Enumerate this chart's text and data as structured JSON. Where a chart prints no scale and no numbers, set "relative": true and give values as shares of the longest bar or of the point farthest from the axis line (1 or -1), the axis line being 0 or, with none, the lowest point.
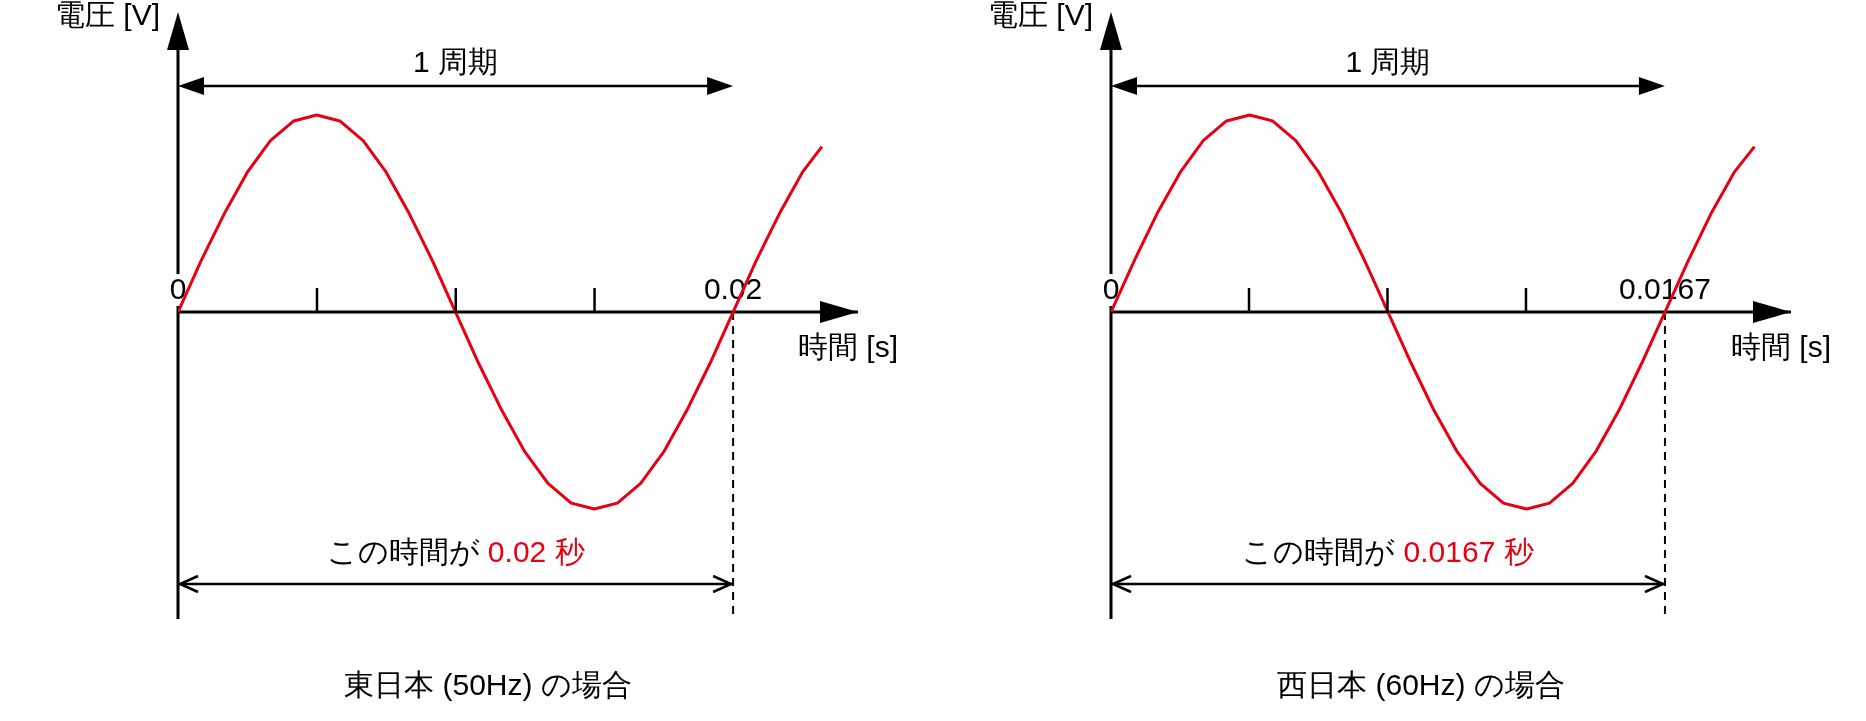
{
  "chart_data": [
    {
      "type": "line",
      "title": "東日本 (50Hz) の場合",
      "xlabel": "時間 [s]",
      "ylabel": "電圧 [V]",
      "relative": true,
      "line_style": "solid",
      "annotations": [
        "1 周期",
        "この時間が",
        "0.02 秒"
      ],
      "x": [
        0,
        0.00083,
        0.00167,
        0.0025,
        0.00333,
        0.00417,
        0.005,
        0.00583,
        0.00667,
        0.0075,
        0.00833,
        0.00917,
        0.01,
        0.01083,
        0.01167,
        0.0125,
        0.01333,
        0.01417,
        0.015,
        0.01583,
        0.01667,
        0.0175,
        0.01833,
        0.01917,
        0.02,
        0.02083,
        0.02167,
        0.0225,
        0.0232
      ],
      "series": [
        {
          "color": "#e60012",
          "values": [
            0,
            0.26,
            0.5,
            0.71,
            0.87,
            0.97,
            1,
            0.97,
            0.87,
            0.71,
            0.5,
            0.26,
            0,
            -0.26,
            -0.5,
            -0.71,
            -0.87,
            -0.97,
            -1,
            -0.97,
            -0.87,
            -0.71,
            -0.5,
            -0.26,
            0,
            0.26,
            0.5,
            0.71,
            0.84
          ]
        }
      ],
      "xlim": [
        0,
        0.0245
      ],
      "xticks": [
        0,
        0.02
      ],
      "ref_lines": [
        {
          "axis": "x",
          "value": 0.02,
          "color": "#000000",
          "line_style": "dashed"
        }
      ]
    },
    {
      "type": "line",
      "title": "西日本 (60Hz) の場合",
      "xlabel": "時間 [s]",
      "ylabel": "電圧 [V]",
      "relative": true,
      "line_style": "solid",
      "annotations": [
        "1 周期",
        "この時間が",
        "0.0167 秒"
      ],
      "x": [
        0,
        0.0007,
        0.00139,
        0.00209,
        0.00278,
        0.00348,
        0.00418,
        0.00487,
        0.00557,
        0.00626,
        0.00696,
        0.00765,
        0.00835,
        0.00905,
        0.00974,
        0.01044,
        0.01113,
        0.01183,
        0.01253,
        0.01322,
        0.01392,
        0.01461,
        0.01531,
        0.016,
        0.0167,
        0.0174,
        0.01809,
        0.01879,
        0.0194
      ],
      "series": [
        {
          "color": "#e60012",
          "values": [
            0,
            0.26,
            0.5,
            0.71,
            0.87,
            0.97,
            1,
            0.97,
            0.87,
            0.71,
            0.5,
            0.26,
            0,
            -0.26,
            -0.5,
            -0.71,
            -0.87,
            -0.97,
            -1,
            -0.97,
            -0.87,
            -0.71,
            -0.5,
            -0.26,
            0,
            0.26,
            0.5,
            0.71,
            0.84
          ]
        }
      ],
      "xlim": [
        0,
        0.0205
      ],
      "xticks": [
        0,
        0.0167
      ],
      "ref_lines": [
        {
          "axis": "x",
          "value": 0.0167,
          "color": "#000000",
          "line_style": "dashed"
        }
      ]
    }
  ]
}
